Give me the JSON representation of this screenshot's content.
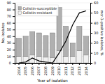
{
  "chart_data": {
    "type": "bar",
    "stacked": true,
    "categories": [
      "2004",
      "2005",
      "2006",
      "2007",
      "2008",
      "2009",
      "2010",
      "2011",
      "2012",
      "2013",
      "2014"
    ],
    "series": [
      {
        "name": "Colistin-resistant",
        "color": "#f0f0f0",
        "values": [
          10,
          10,
          12,
          10,
          9,
          8,
          18,
          10,
          10,
          18,
          12
        ]
      },
      {
        "name": "Colistin-susceptible",
        "color": "#b0b0b0",
        "values": [
          27,
          30,
          35,
          35,
          32,
          37,
          65,
          45,
          20,
          37,
          28
        ]
      },
      {
        "type": "line",
        "axis": "y2",
        "color": "#000000",
        "values": [
          0,
          1,
          5,
          2,
          1,
          0,
          10,
          22,
          38,
          50,
          52
        ]
      }
    ],
    "xlabel": "Year of isolation",
    "ylabel": "No. isolates",
    "y2label": "mcr-1–positive isolates, %",
    "ylim": [
      0,
      90
    ],
    "yticks": [
      0,
      10,
      20,
      30,
      40,
      50,
      60,
      70,
      80,
      90
    ],
    "y2lim": [
      0,
      60
    ],
    "y2ticks": [
      0,
      10,
      20,
      30,
      40,
      50,
      60
    ],
    "grid": true,
    "legend": "upper left"
  }
}
